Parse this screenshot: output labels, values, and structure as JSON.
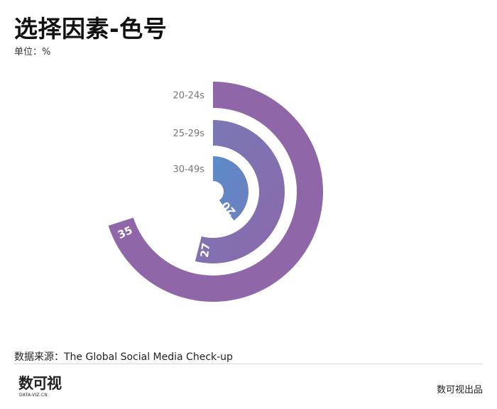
{
  "header": {
    "title": "选择因素-色号",
    "unit": "单位：%"
  },
  "chart_data": {
    "type": "radial-bar",
    "title": "选择因素-色号",
    "unit": "%",
    "max_value": 50,
    "categories": [
      "20-24s",
      "25-29s",
      "30-49s"
    ],
    "values": [
      35,
      27,
      20
    ],
    "colors": [
      "#8f67a8",
      "#7c73b3",
      "#5f87c6"
    ]
  },
  "footer": {
    "source": "数据来源：The Global Social Media Check-up",
    "logo_text": "数可视",
    "logo_sub": "DATA-VIZ.CN",
    "publisher": "数可视出品"
  }
}
